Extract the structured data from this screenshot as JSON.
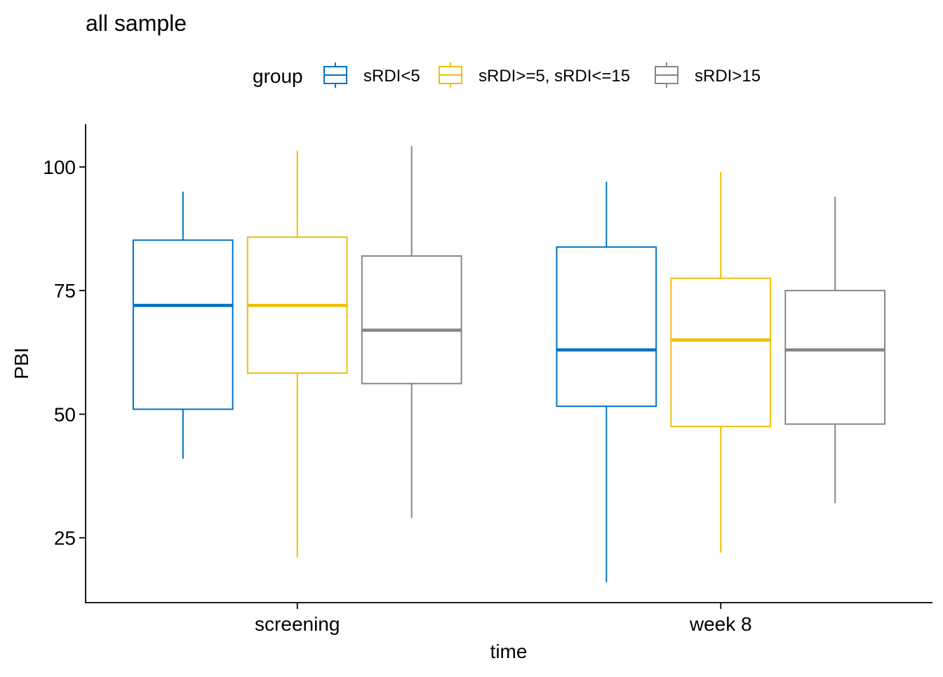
{
  "chart_data": {
    "type": "boxplot",
    "title": "all sample",
    "xlabel": "time",
    "ylabel": "PBI",
    "ylim": [
      12,
      108
    ],
    "yticks": [
      25,
      50,
      75,
      100
    ],
    "grid": false,
    "legend_placement": "top",
    "legend_title": "group",
    "categories": [
      "screening",
      "week 8"
    ],
    "series": [
      {
        "name": "sRDI<5",
        "color": "#0073C2",
        "boxes": [
          {
            "category": "screening",
            "min": 41,
            "q1": 51,
            "median": 72,
            "q3": 85.2,
            "max": 95
          },
          {
            "category": "week 8",
            "min": 16,
            "q1": 51.6,
            "median": 63,
            "q3": 83.8,
            "max": 97
          }
        ]
      },
      {
        "name": "sRDI>=5, sRDI<=15",
        "color": "#EFC000",
        "boxes": [
          {
            "category": "screening",
            "min": 21,
            "q1": 58.3,
            "median": 72,
            "q3": 85.8,
            "max": 103.3
          },
          {
            "category": "week 8",
            "min": 22,
            "q1": 47.5,
            "median": 65,
            "q3": 77.5,
            "max": 99
          }
        ]
      },
      {
        "name": "sRDI>15",
        "color": "#868686",
        "boxes": [
          {
            "category": "screening",
            "min": 29,
            "q1": 56.2,
            "median": 67,
            "q3": 82,
            "max": 104.2
          },
          {
            "category": "week 8",
            "min": 32,
            "q1": 48,
            "median": 63,
            "q3": 75,
            "max": 94
          }
        ]
      }
    ]
  }
}
